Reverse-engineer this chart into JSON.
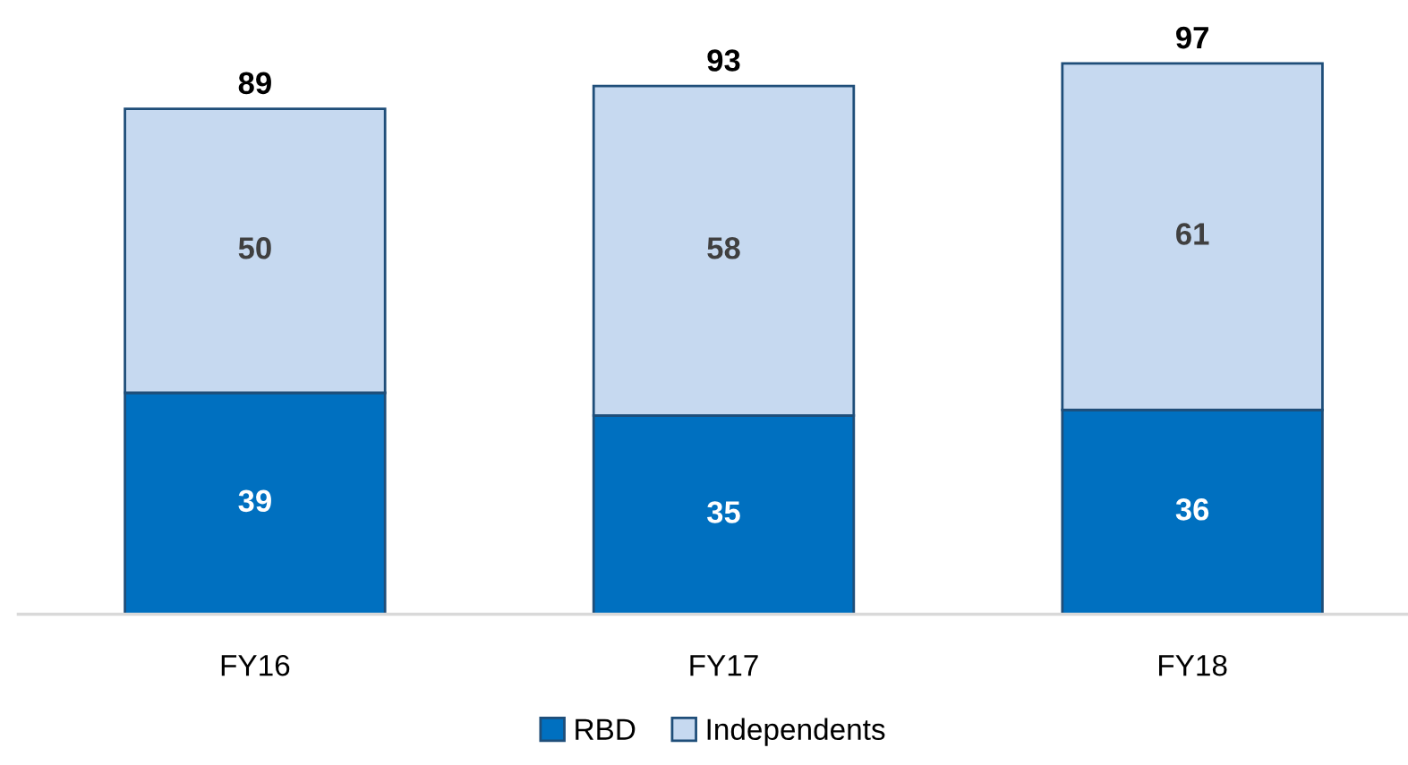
{
  "chart_data": {
    "type": "bar",
    "stacked": true,
    "categories": [
      "FY16",
      "FY17",
      "FY18"
    ],
    "series": [
      {
        "name": "RBD",
        "color": "#0070c0",
        "values": [
          39,
          35,
          36
        ]
      },
      {
        "name": "Independents",
        "color": "#c6d9f0",
        "values": [
          50,
          58,
          61
        ]
      }
    ],
    "data_labels": true,
    "totals": [
      "89",
      "93",
      "97"
    ],
    "legend": "bottom",
    "grid": false
  }
}
